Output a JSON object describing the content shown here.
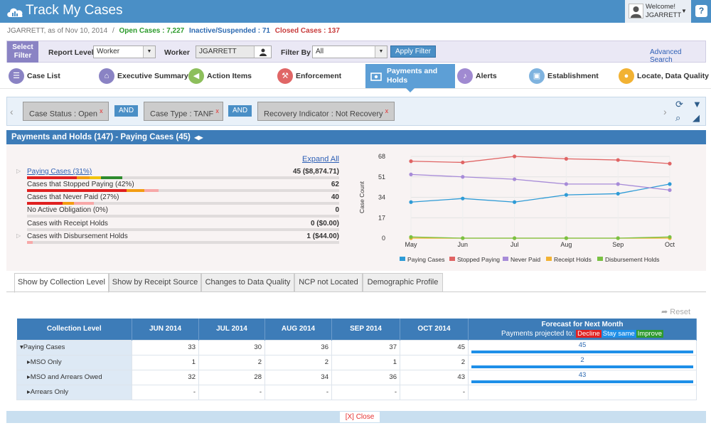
{
  "app": {
    "title": "Track My Cases",
    "welcome": "Welcome!",
    "user": "JGARRETT",
    "help": "?"
  },
  "status": {
    "prefix": "JGARRETT, as of Nov 10, 2014",
    "sep": "/",
    "open": "Open Cases : 7,227",
    "inactive": "Inactive/Suspended : 71",
    "closed": "Closed Cases : 137"
  },
  "filter": {
    "select_filter": "Select Filter",
    "report_level_label": "Report Level",
    "report_level_value": "Worker",
    "worker_label": "Worker",
    "worker_value": "JGARRETT",
    "filter_by_label": "Filter By",
    "filter_by_value": "All",
    "apply": "Apply Filter",
    "advanced": "Advanced Search"
  },
  "nav": [
    {
      "label": "Case List",
      "color": "#8a83c4",
      "icon": "list-icon"
    },
    {
      "label": "Executive Summary",
      "color": "#8a83c4",
      "icon": "home-icon"
    },
    {
      "label": "Action Items",
      "color": "#8dbf5c",
      "icon": "megaphone-icon"
    },
    {
      "label": "Enforcement",
      "color": "#e06666",
      "icon": "gavel-icon"
    },
    {
      "label": "Payments and Holds",
      "color": "#ffffff",
      "icon": "money-icon"
    },
    {
      "label": "Alerts",
      "color": "#a08ad1",
      "icon": "bell-icon"
    },
    {
      "label": "Establishment",
      "color": "#7fb3df",
      "icon": "briefcase-icon"
    },
    {
      "label": "Locate, Data Quality",
      "color": "#f2b233",
      "icon": "location-icon"
    }
  ],
  "criteria": {
    "chips": [
      "Case Status :  Open",
      "Case Type :  TANF",
      "Recovery Indicator :  Not Recovery"
    ],
    "and": "AND",
    "remove": "x"
  },
  "panel": {
    "title": "Payments and Holds (147)  - Paying Cases (45)"
  },
  "summary": {
    "expand_all": "Expand All",
    "rows": [
      {
        "label": "Paying Cases (31%)",
        "value": "45 ($8,874.71)",
        "link": true
      },
      {
        "label": "Cases that Stopped Paying (42%)",
        "value": "62",
        "link": false
      },
      {
        "label": "Cases that Never Paid (27%)",
        "value": "40",
        "link": false
      },
      {
        "label": "No Active Obligation (0%)",
        "value": "0",
        "link": false
      },
      {
        "label": "Cases with Receipt Holds",
        "value": "0 ($0.00)",
        "link": false
      },
      {
        "label": "Cases with Disbursement Holds",
        "value": "1 ($44.00)",
        "link": false
      }
    ]
  },
  "chart_data": {
    "type": "line",
    "x": [
      "May",
      "Jun",
      "Jul",
      "Aug",
      "Sep",
      "Oct"
    ],
    "ylabel": "Case Count",
    "yticks": [
      0,
      17,
      34,
      51,
      68
    ],
    "ylim": [
      0,
      68
    ],
    "grid": true,
    "legend": "bottom",
    "series": [
      {
        "name": "Paying Cases",
        "color": "#2e9bd6",
        "values": [
          30,
          33,
          30,
          36,
          37,
          45
        ]
      },
      {
        "name": "Stopped Paying",
        "color": "#e06464",
        "values": [
          64,
          63,
          68,
          66,
          65,
          62
        ]
      },
      {
        "name": "Never Paid",
        "color": "#a78bd8",
        "values": [
          53,
          51,
          49,
          45,
          45,
          40
        ]
      },
      {
        "name": "Receipt Holds",
        "color": "#f2b233",
        "values": [
          0,
          0,
          0,
          0,
          0,
          0
        ]
      },
      {
        "name": "Disbursement Holds",
        "color": "#7ac143",
        "values": [
          1,
          0,
          0,
          0,
          0,
          1
        ]
      }
    ]
  },
  "tabs": [
    "Show by Collection Level",
    "Show by Receipt Source",
    "Changes to Data Quality",
    "NCP not Located",
    "Demographic Profile"
  ],
  "table": {
    "reset": "Reset",
    "headers": [
      "Collection Level",
      "JUN 2014",
      "JUL 2014",
      "AUG 2014",
      "SEP 2014",
      "OCT 2014"
    ],
    "forecast_title": "Forecast for Next Month",
    "forecast_sub": "Payments projected to:",
    "legend": [
      "Decline",
      "Stay same",
      "Improve"
    ],
    "rows": [
      {
        "label": "Paying Cases",
        "cells": [
          "33",
          "30",
          "36",
          "37",
          "45"
        ],
        "forecast": "45"
      },
      {
        "label": "MSO Only",
        "cells": [
          "1",
          "2",
          "2",
          "1",
          "2"
        ],
        "forecast": "2"
      },
      {
        "label": "MSO and Arrears Owed",
        "cells": [
          "32",
          "28",
          "34",
          "36",
          "43"
        ],
        "forecast": "43"
      },
      {
        "label": "Arrears Only",
        "cells": [
          "-",
          "-",
          "-",
          "-",
          "-"
        ],
        "forecast": ""
      }
    ]
  },
  "close": "[X] Close"
}
